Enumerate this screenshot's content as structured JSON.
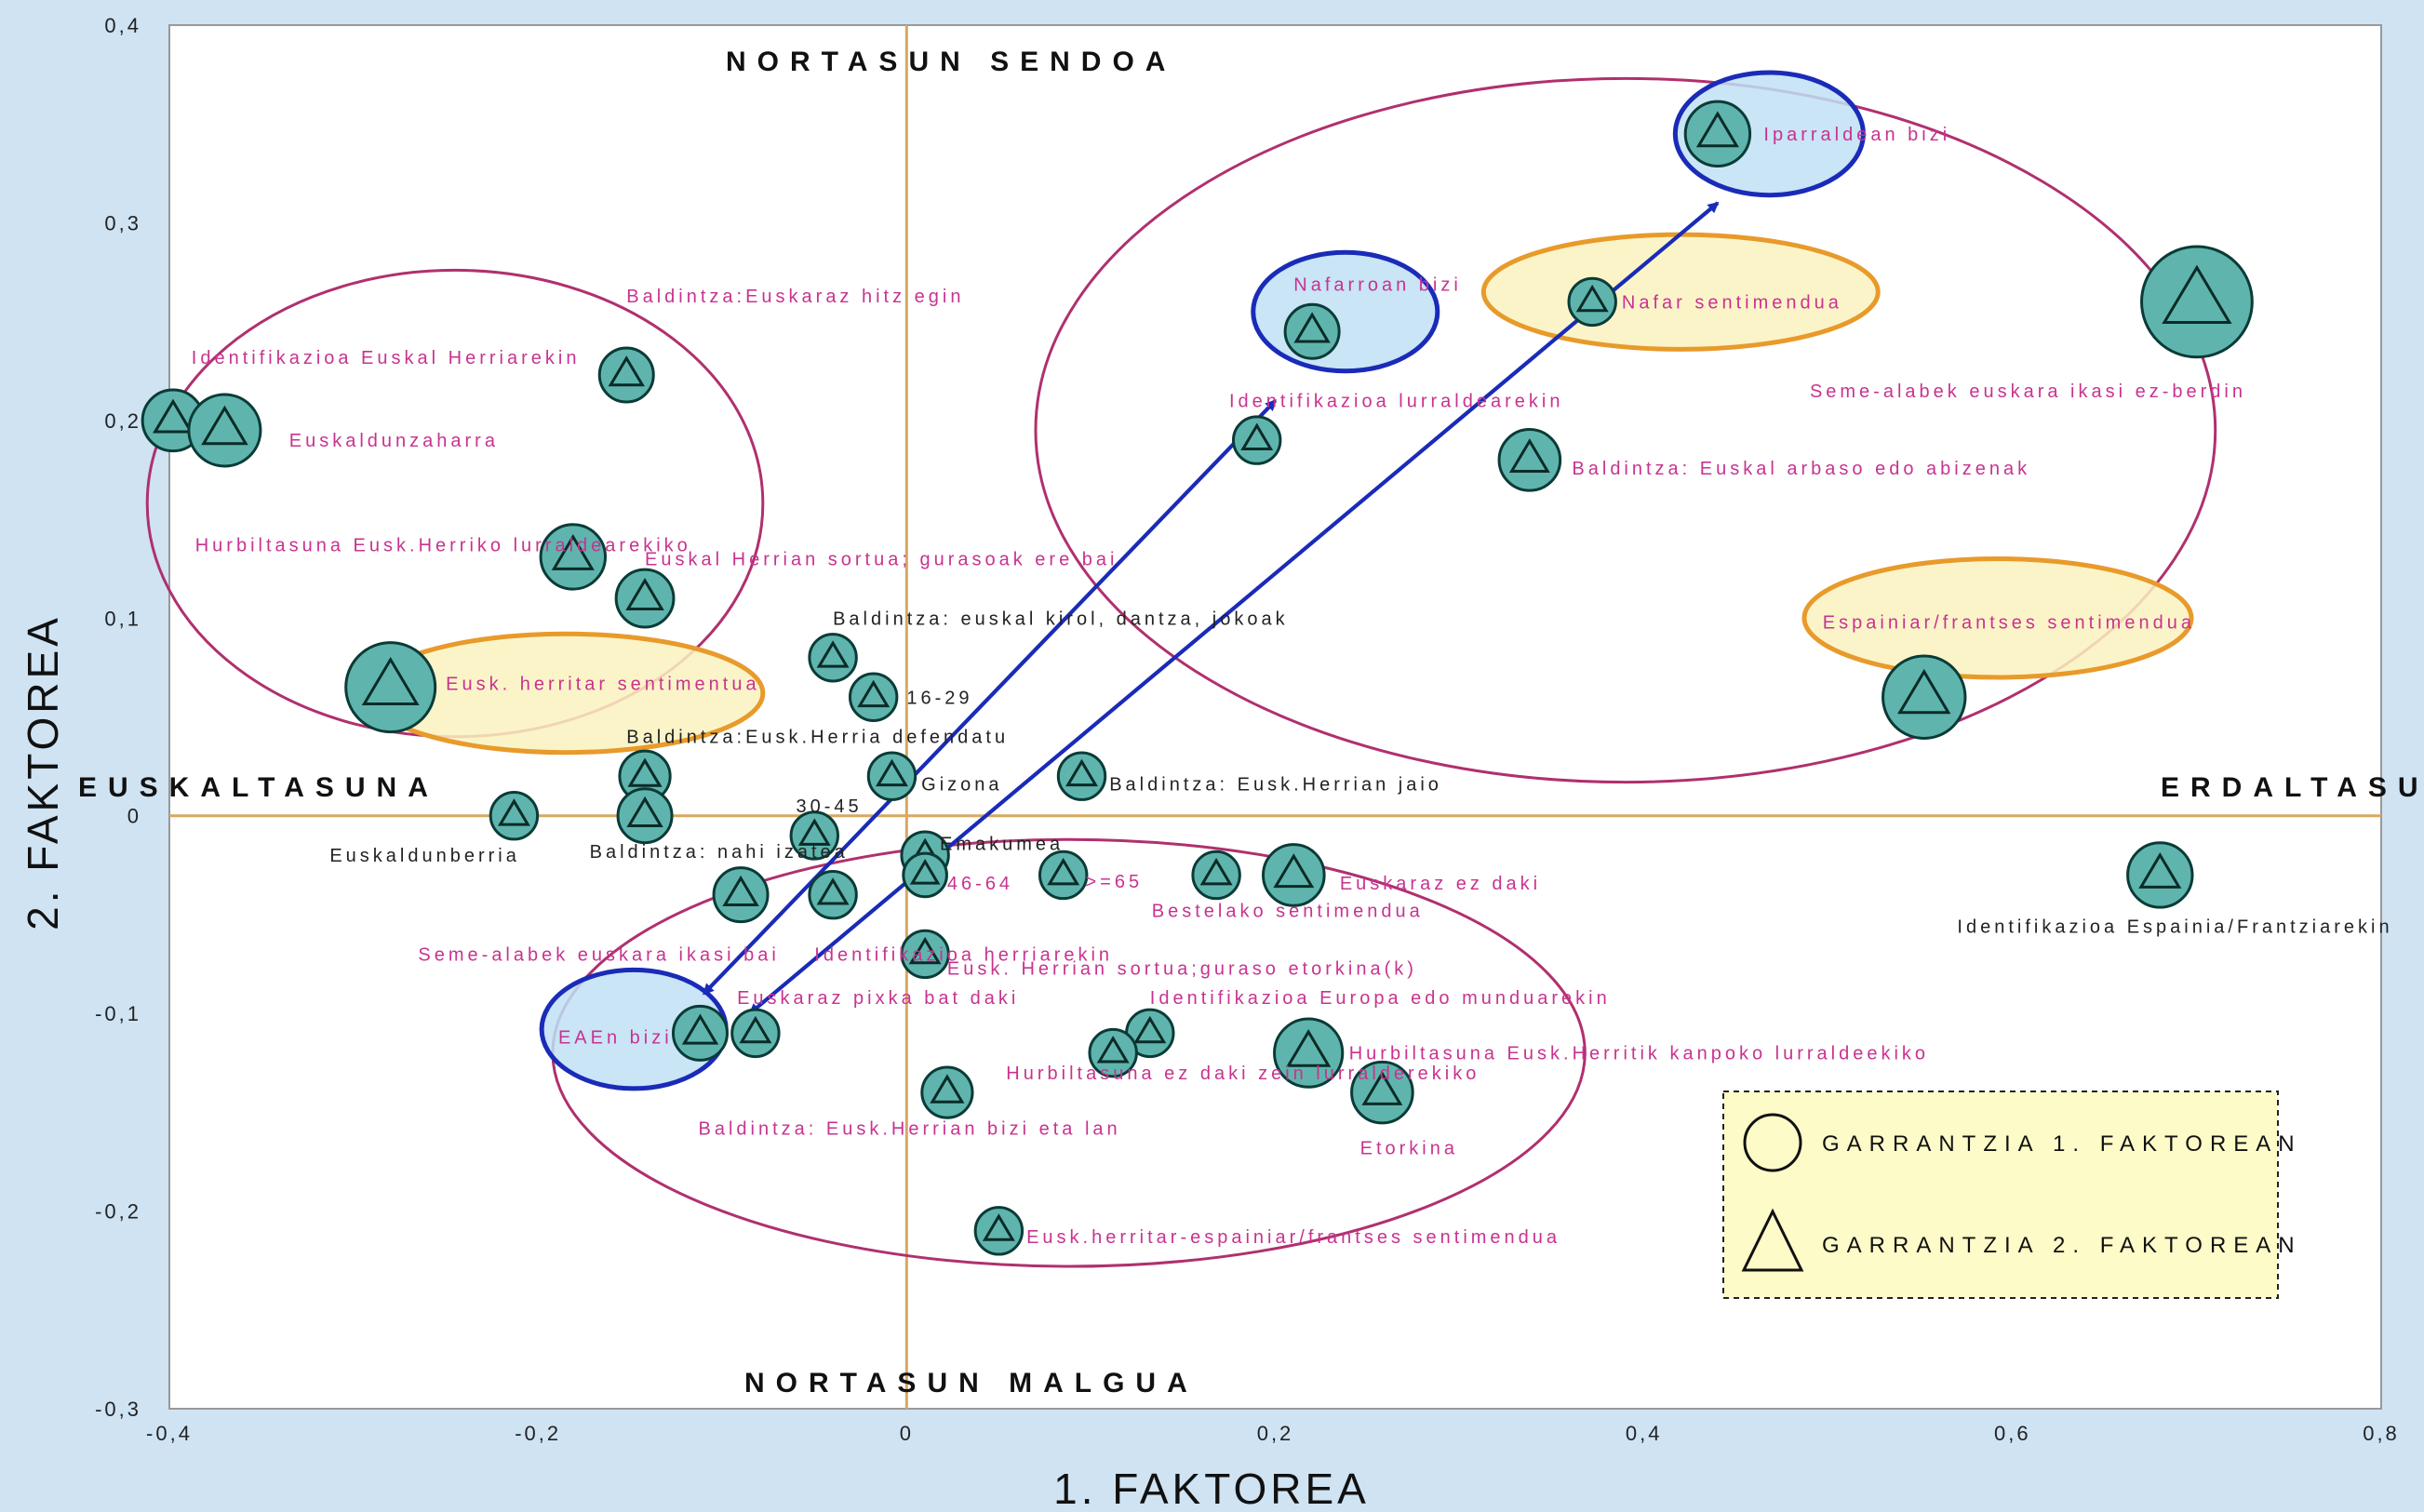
{
  "chart_data": {
    "type": "scatter",
    "xlabel": "1. FAKTOREA",
    "ylabel": "2. FAKTOREA",
    "xlim": [
      -0.4,
      0.8
    ],
    "ylim": [
      -0.3,
      0.4
    ],
    "x_ticks": [
      "-0,4",
      "-0,2",
      "0",
      "0,2",
      "0,4",
      "0,6",
      "0,8"
    ],
    "y_ticks": [
      "0,4",
      "0,3",
      "0,2",
      "0,1",
      "0",
      "-0,1",
      "-0,2",
      "-0,3"
    ],
    "annotations": {
      "top": "NORTASUN SENDOA",
      "bottom": "NORTASUN MALGUA",
      "left": "EUSKALTASUNA",
      "right": "ERDALTASUNA"
    },
    "legend": {
      "circle": "GARRANTZIA 1. FAKTOREAN",
      "triangle": "GARRANTZIA 2. FAKTOREAN"
    },
    "colors": {
      "marker_fill": "#5fb5ad",
      "label": "#c8338f",
      "cluster_ellipse": "#b0306e",
      "blue_highlight": "#1a2bb8",
      "orange_highlight": "#e89a2a",
      "arrow": "#1a2bb8",
      "axis_lines": "#d8a860"
    },
    "points": [
      {
        "label": "Identifikazioa Euskal Herriarekin",
        "x": -0.398,
        "y": 0.2,
        "size": 12
      },
      {
        "label": "Euskaldunzaharra",
        "x": -0.37,
        "y": 0.195,
        "size": 15
      },
      {
        "label": "Baldintza:Euskaraz hitz egin",
        "x": -0.152,
        "y": 0.223,
        "size": 10
      },
      {
        "label": "Hurbiltasuna Eusk.Herriko lurraldearekiko",
        "x": -0.181,
        "y": 0.131,
        "size": 13
      },
      {
        "label": "Euskal Herrian sortua; gurasoak ere bai",
        "x": -0.142,
        "y": 0.11,
        "size": 11
      },
      {
        "label": "Eusk. herritar sentimentua",
        "x": -0.28,
        "y": 0.065,
        "size": 20
      },
      {
        "label": "Baldintza: euskal kirol, dantza, jokoak",
        "x": -0.04,
        "y": 0.08,
        "size": 8
      },
      {
        "label": "16-29",
        "x": -0.018,
        "y": 0.06,
        "size": 8
      },
      {
        "label": "Baldintza:Eusk.Herria defendatu",
        "x": -0.142,
        "y": 0.02,
        "size": 9
      },
      {
        "label": "Gizona",
        "x": -0.008,
        "y": 0.02,
        "size": 8
      },
      {
        "label": "Baldintza: Eusk.Herrian jaio",
        "x": 0.095,
        "y": 0.02,
        "size": 8
      },
      {
        "label": "Euskaldunberria",
        "x": -0.213,
        "y": 0.0,
        "size": 8
      },
      {
        "label": "Baldintza: nahi izatea",
        "x": -0.142,
        "y": 0.0,
        "size": 10
      },
      {
        "label": "30-45",
        "x": -0.05,
        "y": -0.01,
        "size": 8
      },
      {
        "label": "Emakumea",
        "x": 0.01,
        "y": -0.02,
        "size": 8
      },
      {
        "label": "46-64",
        "x": 0.01,
        "y": -0.03,
        "size": 7
      },
      {
        "label": ">=65",
        "x": 0.085,
        "y": -0.03,
        "size": 8
      },
      {
        "label": "Bestelako sentimendua",
        "x": 0.168,
        "y": -0.03,
        "size": 8
      },
      {
        "label": "Euskaraz ez daki",
        "x": 0.21,
        "y": -0.03,
        "size": 12
      },
      {
        "label": "Seme-alabek euskara ikasi bai",
        "x": -0.09,
        "y": -0.04,
        "size": 10
      },
      {
        "label": "Identifikazioa herriarekin",
        "x": -0.04,
        "y": -0.04,
        "size": 8
      },
      {
        "label": "Eusk. Herrian sortua;guraso etorkina(k)",
        "x": 0.01,
        "y": -0.07,
        "size": 8
      },
      {
        "label": "EAEn bizi",
        "x": -0.112,
        "y": -0.11,
        "size": 10
      },
      {
        "label": "Euskaraz pixka bat daki",
        "x": -0.082,
        "y": -0.11,
        "size": 8
      },
      {
        "label": "Identifikazioa Europa edo munduarekin",
        "x": 0.132,
        "y": -0.11,
        "size": 8
      },
      {
        "label": "Hurbiltasuna ez daki zein lurralderekiko",
        "x": 0.112,
        "y": -0.12,
        "size": 8
      },
      {
        "label": "Hurbiltasuna Eusk.Herritik kanpoko lurraldeekiko",
        "x": 0.218,
        "y": -0.12,
        "size": 14
      },
      {
        "label": "Baldintza: Eusk.Herrian bizi eta lan",
        "x": 0.022,
        "y": -0.14,
        "size": 9
      },
      {
        "label": "Etorkina",
        "x": 0.258,
        "y": -0.14,
        "size": 12
      },
      {
        "label": "Eusk.herritar-espainiar/frantses sentimendua",
        "x": 0.05,
        "y": -0.21,
        "size": 8
      },
      {
        "label": "Iparraldean bizi",
        "x": 0.44,
        "y": 0.345,
        "size": 13
      },
      {
        "label": "Nafarroan bizi",
        "x": 0.22,
        "y": 0.245,
        "size": 10
      },
      {
        "label": "Nafar sentimendua",
        "x": 0.372,
        "y": 0.26,
        "size": 8
      },
      {
        "label": "Seme-alabek euskara ikasi ez-berdin",
        "x": 0.7,
        "y": 0.26,
        "size": 26
      },
      {
        "label": "Identifikazioa lurraldearekin",
        "x": 0.19,
        "y": 0.19,
        "size": 8
      },
      {
        "label": "Baldintza: Euskal arbaso edo abizenak",
        "x": 0.338,
        "y": 0.18,
        "size": 12
      },
      {
        "label": "Espainiar/frantses sentimendua",
        "x": 0.552,
        "y": 0.06,
        "size": 18
      },
      {
        "label": "Identifikazioa Espainia/Frantziarekin",
        "x": 0.68,
        "y": -0.03,
        "size": 13
      }
    ]
  }
}
